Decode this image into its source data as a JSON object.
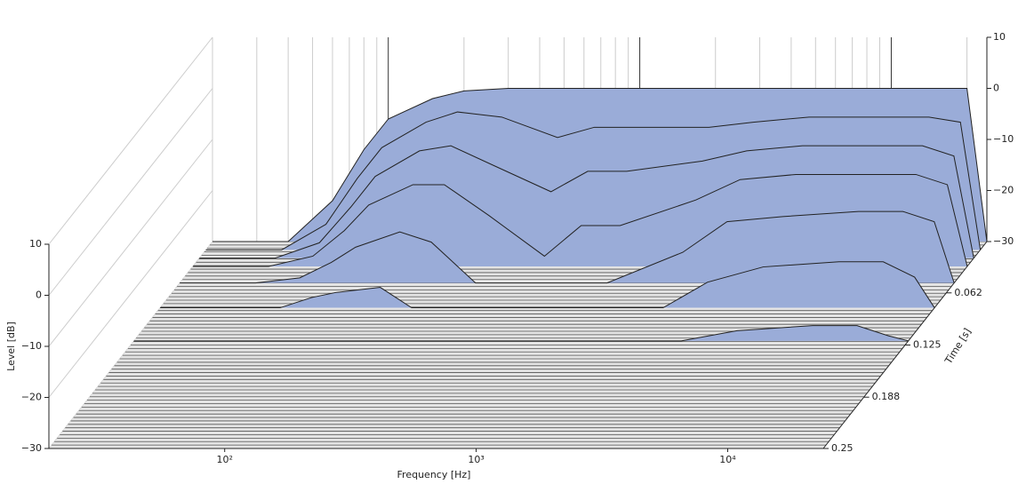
{
  "chart_data": {
    "type": "waterfall",
    "xlabel": "Frequency [Hz]",
    "ylabel": "Time [s]",
    "zlabel": "Level [dB]",
    "x": [
      20,
      40,
      60,
      80,
      100,
      150,
      200,
      300,
      500,
      700,
      1000,
      2000,
      3000,
      5000,
      10000,
      15000,
      20000,
      24000
    ],
    "xlim": [
      20,
      24000
    ],
    "xscale": "log",
    "xticks": [
      {
        "value": 100,
        "label": "10²"
      },
      {
        "value": 1000,
        "label": "10³"
      },
      {
        "value": 10000,
        "label": "10⁴"
      }
    ],
    "ylim": [
      0,
      0.25
    ],
    "yticks": [
      0.062,
      0.125,
      0.188,
      0.25
    ],
    "zlim": [
      -30,
      10
    ],
    "zticks": [
      {
        "value": -30,
        "label": "−30"
      },
      {
        "value": -20,
        "label": "−20"
      },
      {
        "value": -10,
        "label": "−10"
      },
      0,
      10
    ],
    "color": "#9aacd8",
    "slices": [
      {
        "time": 0,
        "values": [
          -30,
          -30,
          -22,
          -12,
          -6,
          -2,
          -0.5,
          0,
          0,
          0,
          0,
          0,
          0,
          0,
          0,
          0,
          0,
          -30
        ]
      },
      {
        "time": 0.01,
        "values": [
          -30,
          -30,
          -25,
          -16,
          -10,
          -5,
          -3,
          -4,
          -8,
          -6,
          -6,
          -6,
          -5,
          -4,
          -4,
          -4,
          -5,
          -30
        ]
      },
      {
        "time": 0.02,
        "values": [
          -30,
          -30,
          -27,
          -20,
          -14,
          -9,
          -8,
          -12,
          -17,
          -13,
          -13,
          -11,
          -9,
          -8,
          -8,
          -8,
          -10,
          -30
        ]
      },
      {
        "time": 0.03,
        "values": [
          -30,
          -30,
          -28,
          -23,
          -18,
          -14,
          -14,
          -20,
          -28,
          -22,
          -22,
          -17,
          -13,
          -12,
          -12,
          -12,
          -14,
          -30
        ]
      },
      {
        "time": 0.05,
        "values": [
          -30,
          -30,
          -29,
          -26,
          -23,
          -20,
          -22,
          -30,
          -30,
          -30,
          -30,
          -24,
          -18,
          -17,
          -16,
          -16,
          -18,
          -30
        ]
      },
      {
        "time": 0.08,
        "values": [
          -30,
          -30,
          -30,
          -28,
          -27,
          -26,
          -30,
          -30,
          -30,
          -30,
          -30,
          -30,
          -25,
          -22,
          -21,
          -21,
          -24,
          -30
        ]
      },
      {
        "time": 0.12,
        "values": [
          -30,
          -30,
          -30,
          -30,
          -30,
          -30,
          -30,
          -30,
          -30,
          -30,
          -30,
          -30,
          -30,
          -28,
          -27,
          -27,
          -29,
          -30
        ]
      },
      {
        "time": 0.25,
        "values": [
          -30,
          -30,
          -30,
          -30,
          -30,
          -30,
          -30,
          -30,
          -30,
          -30,
          -30,
          -30,
          -30,
          -30,
          -30,
          -30,
          -30,
          -30
        ]
      }
    ]
  }
}
